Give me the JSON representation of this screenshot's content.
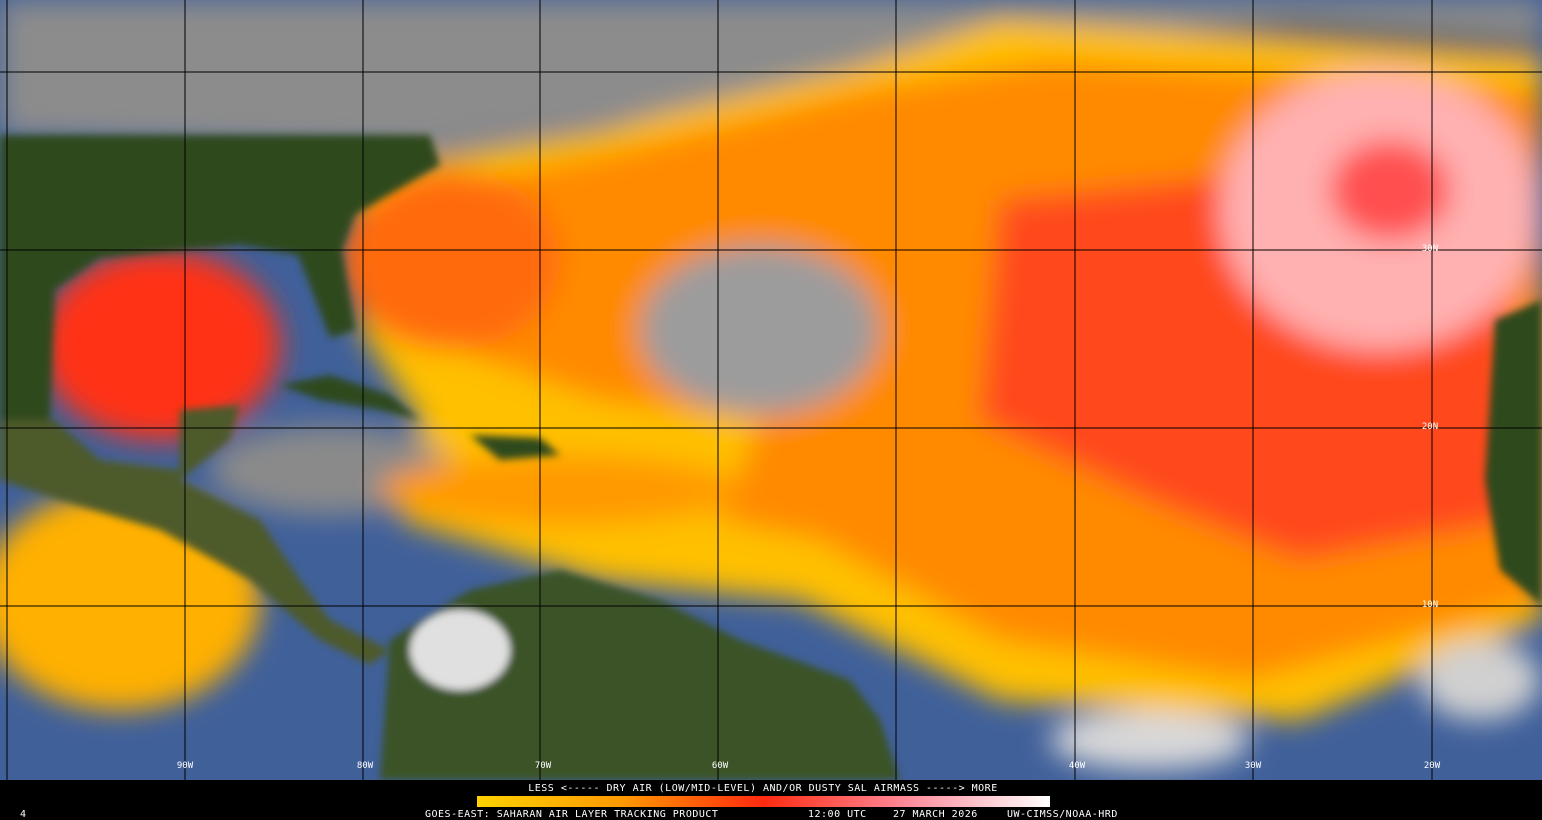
{
  "map": {
    "lon_labels": [
      "90W",
      "80W",
      "70W",
      "60W",
      "40W",
      "30W",
      "20W"
    ],
    "lat_labels": [
      "30N",
      "20N",
      "10N"
    ]
  },
  "legend": {
    "caption": "LESS <----- DRY AIR (LOW/MID-LEVEL) AND/OR DUSTY SAL AIRMASS -----> MORE"
  },
  "footer": {
    "product": "GOES-EAST: SAHARAN AIR LAYER TRACKING PRODUCT",
    "time": "12:00 UTC",
    "date": "27 MARCH 2026",
    "credit": "UW-CIMSS/NOAA-HRD",
    "frame": "4"
  }
}
